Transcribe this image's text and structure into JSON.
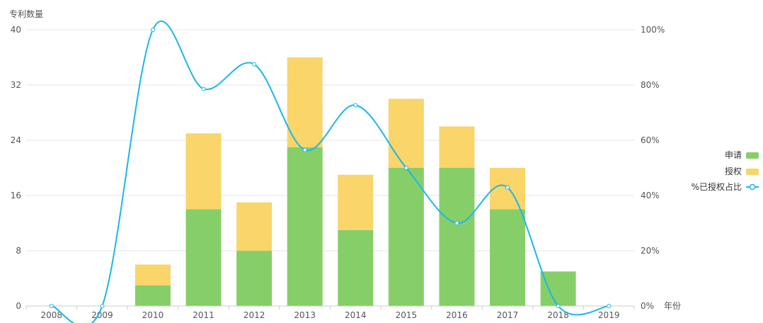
{
  "chart_data": {
    "type": "bar",
    "stacked": true,
    "categories": [
      "2008",
      "2009",
      "2010",
      "2011",
      "2012",
      "2013",
      "2014",
      "2015",
      "2016",
      "2017",
      "2018",
      "2019"
    ],
    "title": "",
    "ylabel": "专利数量",
    "xlabel": "年份",
    "ylim": [
      0,
      40
    ],
    "y_ticks": [
      0,
      8,
      16,
      24,
      32,
      40
    ],
    "y2lim": [
      0,
      100
    ],
    "y2_ticks": [
      "0%",
      "20%",
      "40%",
      "60%",
      "80%",
      "100%"
    ],
    "grid": true,
    "legend_position": "right",
    "series": [
      {
        "name": "申请",
        "type": "bar",
        "color": "#86cf68",
        "values": [
          0,
          0,
          3,
          14,
          8,
          23,
          11,
          20,
          20,
          14,
          5,
          0
        ]
      },
      {
        "name": "授权",
        "type": "bar",
        "color": "#f9d56a",
        "values": [
          0,
          0,
          3,
          11,
          7,
          13,
          8,
          10,
          6,
          6,
          0,
          0
        ]
      },
      {
        "name": "%已授权占比",
        "type": "line",
        "axis": "right",
        "smooth": true,
        "color": "#1ab7ea",
        "values": [
          0,
          0,
          100,
          78.6,
          87.5,
          56.5,
          72.7,
          50,
          30,
          42.9,
          0,
          0
        ]
      }
    ]
  }
}
